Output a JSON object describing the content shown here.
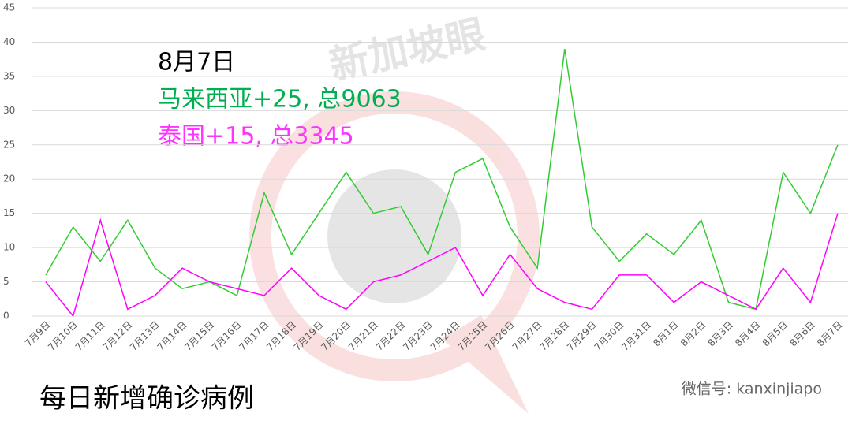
{
  "chart_data": {
    "type": "line",
    "categories": [
      "7月9日",
      "7月10日",
      "7月11日",
      "7月12日",
      "7月13日",
      "7月14日",
      "7月15日",
      "7月16日",
      "7月17日",
      "7月18日",
      "7月19日",
      "7月20日",
      "7月21日",
      "7月22日",
      "7月23日",
      "7月24日",
      "7月25日",
      "7月26日",
      "7月27日",
      "7月28日",
      "7月29日",
      "7月30日",
      "7月31日",
      "8月1日",
      "8月2日",
      "8月3日",
      "8月4日",
      "8月5日",
      "8月6日",
      "8月7日"
    ],
    "series": [
      {
        "color": "#33cc33",
        "values": [
          6,
          13,
          8,
          14,
          7,
          4,
          5,
          3,
          18,
          9,
          15,
          21,
          15,
          16,
          9,
          21,
          23,
          13,
          7,
          39,
          13,
          8,
          12,
          9,
          14,
          2,
          1,
          21,
          15,
          25
        ]
      },
      {
        "color": "#ff00ff",
        "values": [
          5,
          0,
          14,
          1,
          3,
          7,
          5,
          4,
          3,
          7,
          3,
          1,
          5,
          6,
          8,
          10,
          3,
          9,
          4,
          2,
          1,
          6,
          6,
          2,
          5,
          3,
          1,
          7,
          2,
          15
        ]
      }
    ],
    "ylim": [
      0,
      45
    ],
    "yticks": [
      0,
      5,
      10,
      15,
      20,
      25,
      30,
      35,
      40,
      45
    ],
    "grid": true,
    "annotations": [
      "8月7日",
      "马来西亚+25, 总9063",
      "泰国+15, 总3345"
    ],
    "title": "每日新增确诊病例",
    "watermark": "新加坡眼",
    "credit": "微信号: kanxinjiapo"
  }
}
